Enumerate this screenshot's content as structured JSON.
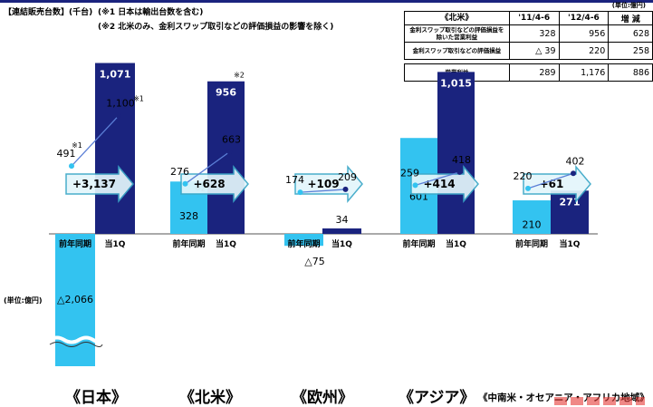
{
  "header": {
    "title": "【連結販売台数】(千台)",
    "note1": "(※1 日本は輸出台数を含む)",
    "note2": "(※2 北米のみ、金利スワップ取引などの評価損益の影響を除く)"
  },
  "table": {
    "unit": "(単位:億円)",
    "headers": [
      "《北米》",
      "'11/4-6",
      "'12/4-6",
      "増 減"
    ],
    "rows": [
      {
        "label": "金利スワップ取引などの評価損益を除いた営業利益",
        "v1": "328",
        "v2": "956",
        "d": "628"
      },
      {
        "label": "金利スワップ取引などの評価損益",
        "v1": "△ 39",
        "v2": "220",
        "d": "258"
      },
      {
        "label": "営業利益",
        "v1": "289",
        "v2": "1,176",
        "d": "886"
      }
    ]
  },
  "unit_label": "(単位:億円)",
  "colors": {
    "prior_bar": "#33c3f0",
    "current_bar": "#1a237e",
    "arrow_fill": "#e3f6fb",
    "arrow_stroke": "#3aa7c7",
    "prior_dot": "#33c3f0",
    "current_dot": "#1a237e",
    "line": "#5b7fd6"
  },
  "chart_data": {
    "type": "bar",
    "categories": [
      "《日本》",
      "《北米》",
      "《欧州》",
      "《アジア》",
      "《中南米・オセアニア・アフリカ地域》"
    ],
    "x_tick_labels": [
      "前年同期",
      "当1Q"
    ],
    "series": [
      {
        "name": "営業利益",
        "items": [
          {
            "prior": -2066,
            "prior_label": "△2,066",
            "prior_note": "",
            "current": 1071,
            "current_label": "1,071",
            "current_note": "",
            "change_label": "+3,137"
          },
          {
            "prior": 328,
            "prior_label": "328",
            "prior_note": "※2",
            "current": 956,
            "current_label": "956",
            "current_note": "※2",
            "change_label": "+628"
          },
          {
            "prior": -75,
            "prior_label": "△75",
            "prior_note": "",
            "current": 34,
            "current_label": "34",
            "current_note": "",
            "change_label": "+109"
          },
          {
            "prior": 601,
            "prior_label": "601",
            "prior_note": "",
            "current": 1015,
            "current_label": "1,015",
            "current_note": "",
            "change_label": "+414"
          },
          {
            "prior": 210,
            "prior_label": "210",
            "prior_note": "",
            "current": 271,
            "current_label": "271",
            "current_note": "",
            "change_label": "+61"
          }
        ]
      },
      {
        "name": "連結販売台数",
        "items": [
          {
            "prior": 491,
            "prior_label": "491",
            "prior_note": "※1",
            "current": 1100,
            "current_label": "1,100",
            "current_note": "※1"
          },
          {
            "prior": 276,
            "prior_label": "276",
            "prior_note": "",
            "current": 663,
            "current_label": "663",
            "current_note": ""
          },
          {
            "prior": 174,
            "prior_label": "174",
            "prior_note": "",
            "current": 209,
            "current_label": "209",
            "current_note": ""
          },
          {
            "prior": 259,
            "prior_label": "259",
            "prior_note": "",
            "current": 418,
            "current_label": "418",
            "current_note": ""
          },
          {
            "prior": 220,
            "prior_label": "220",
            "prior_note": "",
            "current": 402,
            "current_label": "402",
            "current_note": ""
          }
        ]
      }
    ],
    "broken_axis": true
  }
}
